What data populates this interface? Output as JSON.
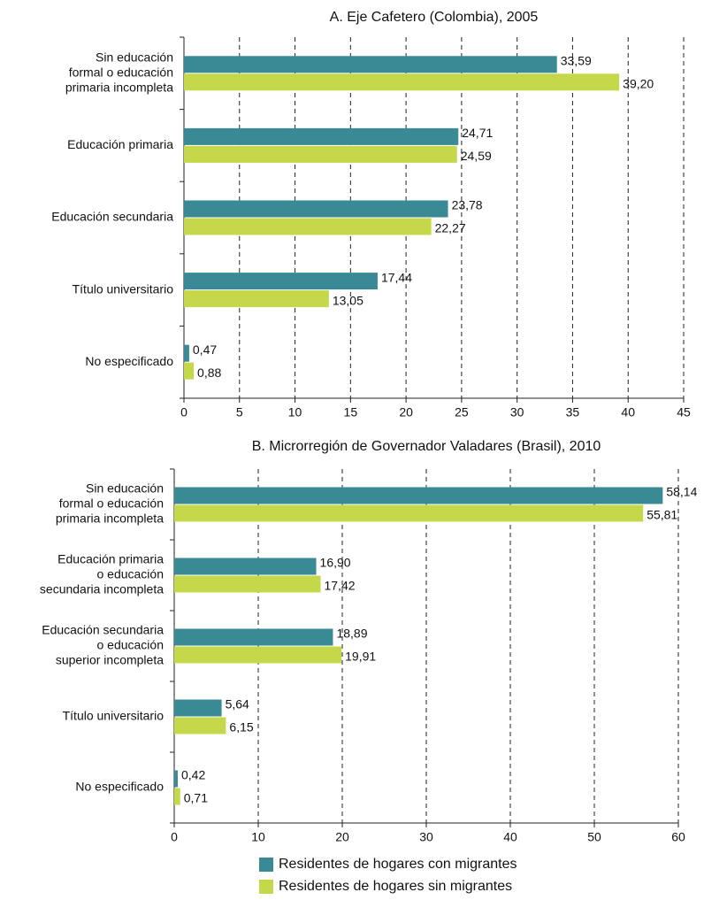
{
  "chart_data": [
    {
      "type": "hbar",
      "title": "A. Eje Cafetero (Colombia), 2005",
      "categories": [
        [
          "Sin educación",
          "formal o educación",
          "primaria incompleta"
        ],
        [
          "Educación primaria"
        ],
        [
          "Educación secundaria"
        ],
        [
          "Título universitario"
        ],
        [
          "No especificado"
        ]
      ],
      "series": [
        {
          "color": "#3a8a96",
          "values": [
            33.59,
            24.71,
            23.78,
            17.44,
            0.47
          ],
          "value_labels": [
            "33,59",
            "24,71",
            "23,78",
            "17,44",
            "0,47"
          ]
        },
        {
          "color": "#c5d84a",
          "values": [
            39.2,
            24.59,
            22.27,
            13.05,
            0.88
          ],
          "value_labels": [
            "39,20",
            "24,59",
            "22,27",
            "13,05",
            "0,88"
          ]
        }
      ],
      "xlim": [
        0,
        45
      ],
      "xticks": [
        0,
        5,
        10,
        15,
        20,
        25,
        30,
        35,
        40,
        45
      ],
      "grid": true
    },
    {
      "type": "hbar",
      "title": "B. Microrregión de Governador Valadares (Brasil), 2010",
      "categories": [
        [
          "Sin educación",
          "formal o educación",
          "primaria incompleta"
        ],
        [
          "Educación primaria",
          "o educación",
          "secundaria incompleta"
        ],
        [
          "Educación secundaria",
          "o educación",
          "superior incompleta"
        ],
        [
          "Título universitario"
        ],
        [
          "No especificado"
        ]
      ],
      "series": [
        {
          "name": "Residentes de hogares con migrantes",
          "color": "#3a8a96",
          "values": [
            58.14,
            16.9,
            18.89,
            5.64,
            0.42
          ],
          "value_labels": [
            "58,14",
            "16,90",
            "18,89",
            "5,64",
            "0,42"
          ]
        },
        {
          "name": "Residentes de hogares sin migrantes",
          "color": "#c5d84a",
          "values": [
            55.81,
            17.42,
            19.91,
            6.15,
            0.71
          ],
          "value_labels": [
            "55,81",
            "17,42",
            "19,91",
            "6,15",
            "0,71"
          ]
        }
      ],
      "xlim": [
        0,
        60
      ],
      "xticks": [
        0,
        10,
        20,
        30,
        40,
        50,
        60
      ],
      "grid": true,
      "legend": "bottom"
    }
  ]
}
